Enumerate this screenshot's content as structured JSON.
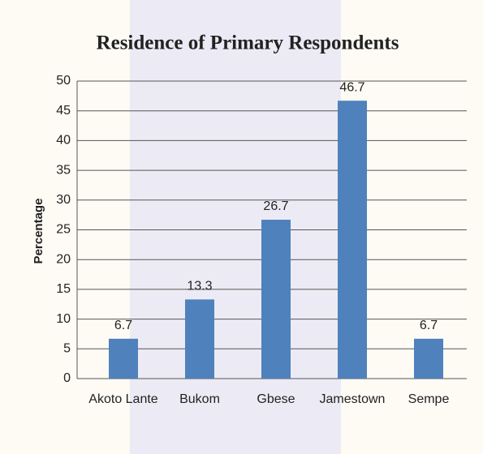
{
  "chart_data": {
    "type": "bar",
    "title": "Residence of Primary Respondents",
    "y_label": "Percentage",
    "categories": [
      "Akoto Lante",
      "Bukom",
      "Gbese",
      "Jamestown",
      "Sempe"
    ],
    "values": [
      6.7,
      13.3,
      26.7,
      46.7,
      6.7
    ],
    "color": "#4f81bd",
    "ylim": [
      0,
      50
    ],
    "yticks": [
      0,
      5,
      10,
      15,
      20,
      25,
      30,
      35,
      40,
      45,
      50
    ],
    "grid": true
  }
}
